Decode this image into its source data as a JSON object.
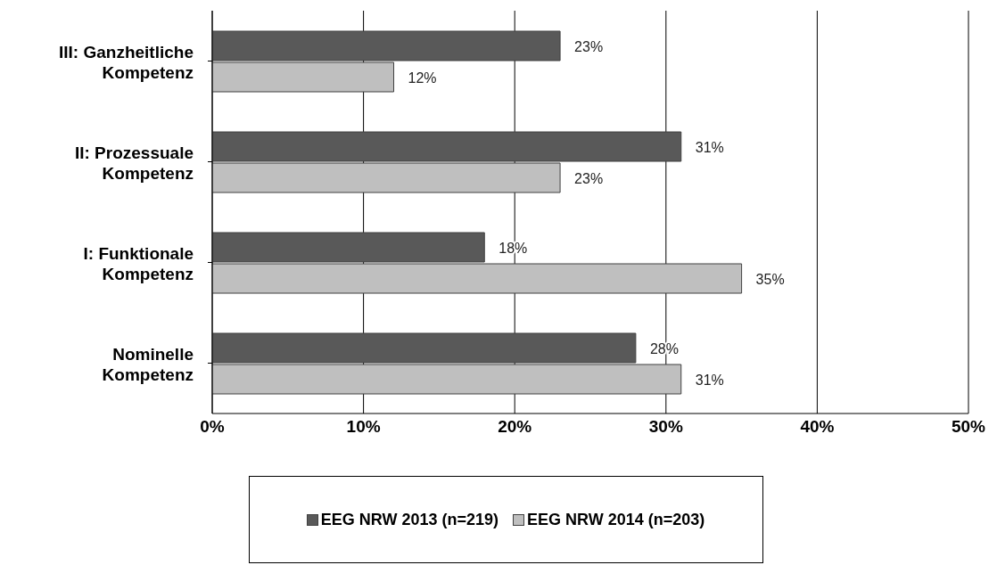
{
  "chart_data": {
    "type": "bar",
    "orientation": "horizontal",
    "categories": [
      "III: Ganzheitliche Kompetenz",
      "II: Prozessuale Kompetenz",
      "I: Funktionale Kompetenz",
      "Nominelle Kompetenz"
    ],
    "series": [
      {
        "name": "EEG NRW 2013 (n=219)",
        "color": "#595959",
        "values": [
          23,
          31,
          18,
          28
        ],
        "value_labels": [
          "23%",
          "31%",
          "18%",
          "28%"
        ]
      },
      {
        "name": "EEG NRW 2014 (n=203)",
        "color": "#bfbfbf",
        "values": [
          12,
          23,
          35,
          31
        ],
        "value_labels": [
          "12%",
          "23%",
          "35%",
          "31%"
        ]
      }
    ],
    "xlim": [
      0,
      50
    ],
    "xticks": [
      {
        "value": 0,
        "label": "0%"
      },
      {
        "value": 10,
        "label": "10%"
      },
      {
        "value": 20,
        "label": "20%"
      },
      {
        "value": 30,
        "label": "30%"
      },
      {
        "value": 40,
        "label": "40%"
      },
      {
        "value": 50,
        "label": "50%"
      }
    ],
    "grid": "x",
    "legend": "bottom"
  }
}
